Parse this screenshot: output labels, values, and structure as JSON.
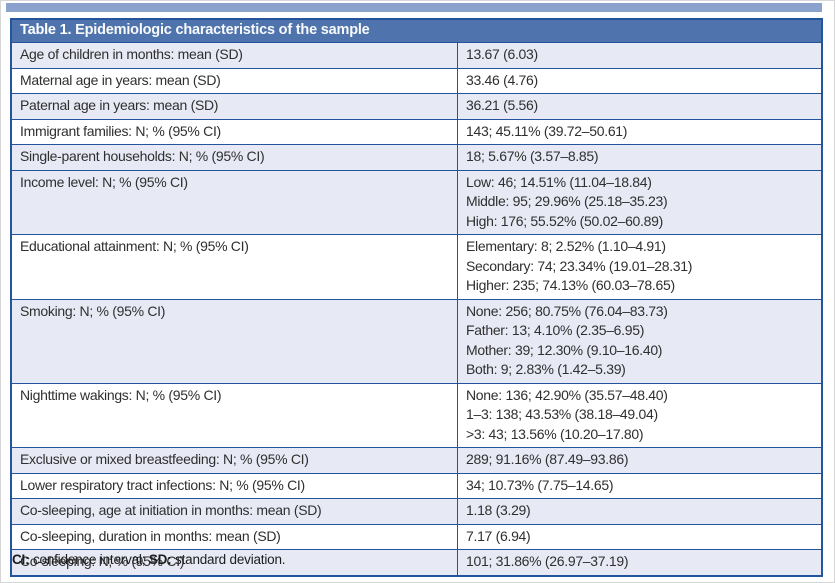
{
  "colors": {
    "header_bg": "#4f74ad",
    "border": "#24549b",
    "row_shaded_bg": "#e7eaf5",
    "top_strip": "#8aa2cc",
    "text": "#2f2f2f"
  },
  "table": {
    "title_bold": "Table 1.",
    "title_rest": " Epidemiologic characteristics of the sample",
    "rows": [
      {
        "label": "Age of children in months: mean (SD)",
        "values": [
          "13.67 (6.03)"
        ],
        "shaded": true
      },
      {
        "label": "Maternal age in years: mean (SD)",
        "values": [
          "33.46 (4.76)"
        ],
        "shaded": false
      },
      {
        "label": "Paternal age in years: mean (SD)",
        "values": [
          "36.21 (5.56)"
        ],
        "shaded": true
      },
      {
        "label": "Immigrant families: N; % (95% CI)",
        "values": [
          "143; 45.11% (39.72–50.61)"
        ],
        "shaded": false
      },
      {
        "label": "Single-parent households: N; % (95% CI)",
        "values": [
          "18; 5.67% (3.57–8.85)"
        ],
        "shaded": true
      },
      {
        "label": "Income level: N; % (95% CI)",
        "values": [
          "Low: 46; 14.51% (11.04–18.84)",
          "Middle: 95; 29.96% (25.18–35.23)",
          "High: 176; 55.52% (50.02–60.89)"
        ],
        "shaded": true
      },
      {
        "label": "Educational attainment: N; % (95% CI)",
        "values": [
          "Elementary: 8; 2.52% (1.10–4.91)",
          "Secondary: 74; 23.34% (19.01–28.31)",
          "Higher: 235; 74.13% (60.03–78.65)"
        ],
        "shaded": false
      },
      {
        "label": "Smoking: N; % (95% CI)",
        "values": [
          "None: 256; 80.75% (76.04–83.73)",
          "Father: 13; 4.10% (2.35–6.95)",
          "Mother: 39; 12.30% (9.10–16.40)",
          "Both: 9; 2.83% (1.42–5.39)"
        ],
        "shaded": true
      },
      {
        "label": "Nighttime wakings: N; % (95% CI)",
        "values": [
          "None: 136; 42.90% (35.57–48.40)",
          "1–3: 138; 43.53% (38.18–49.04)",
          ">3: 43; 13.56% (10.20–17.80)"
        ],
        "shaded": false
      },
      {
        "label": "Exclusive or mixed breastfeeding: N; % (95% CI)",
        "values": [
          "289; 91.16% (87.49–93.86)"
        ],
        "shaded": true
      },
      {
        "label": "Lower respiratory tract infections: N; % (95% CI)",
        "values": [
          "34; 10.73% (7.75–14.65)"
        ],
        "shaded": false
      },
      {
        "label": "Co-sleeping, age at initiation in months: mean (SD)",
        "values": [
          "1.18 (3.29)"
        ],
        "shaded": true
      },
      {
        "label": "Co-sleeping, duration in months: mean (SD)",
        "values": [
          "7.17 (6.94)"
        ],
        "shaded": false
      },
      {
        "label": "Co-sleeping: N; % (95% CI)",
        "values": [
          "101; 31.86% (26.97–37.19)"
        ],
        "shaded": true
      }
    ]
  },
  "footnote": {
    "parts": [
      {
        "text": "CI:",
        "bold": true
      },
      {
        "text": " confidence interval; ",
        "bold": false
      },
      {
        "text": "SD:",
        "bold": true
      },
      {
        "text": " standard deviation.",
        "bold": false
      }
    ]
  }
}
